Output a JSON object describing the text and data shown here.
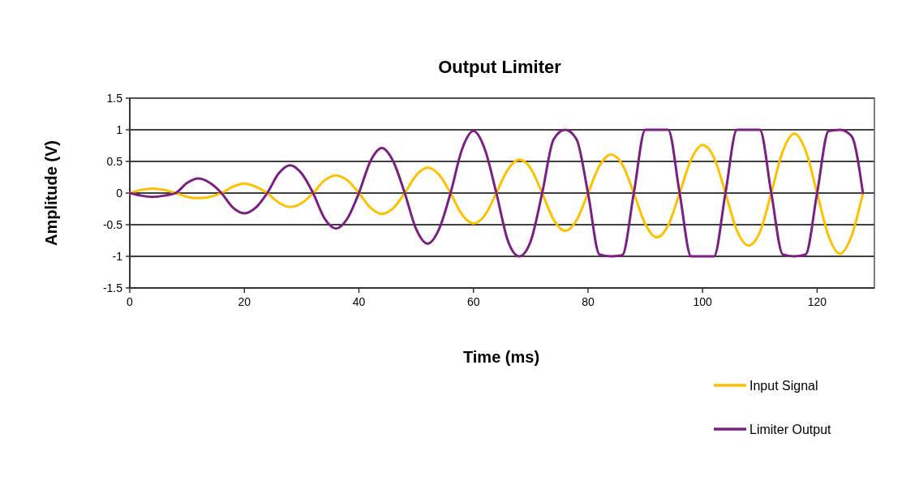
{
  "chart_data": {
    "type": "line",
    "title": "Output Limiter",
    "xlabel": "Time (ms)",
    "ylabel": "Amplitude (V)",
    "x": [
      0,
      2,
      4,
      6,
      8,
      10,
      12,
      14,
      16,
      18,
      20,
      22,
      24,
      26,
      28,
      30,
      32,
      34,
      36,
      38,
      40,
      42,
      44,
      46,
      48,
      50,
      52,
      54,
      56,
      58,
      60,
      62,
      64,
      66,
      68,
      70,
      72,
      74,
      76,
      78,
      80,
      82,
      84,
      86,
      88,
      90,
      92,
      94,
      96,
      98,
      100,
      102,
      104,
      106,
      108,
      110,
      112,
      114,
      116,
      118,
      120,
      122,
      124,
      126,
      128
    ],
    "series": [
      {
        "name": "Input Signal",
        "color": "#ffc000",
        "values": [
          0,
          0.05,
          0.07,
          0.05,
          0,
          -0.06,
          -0.08,
          -0.06,
          0,
          0.1,
          0.15,
          0.1,
          0,
          -0.15,
          -0.22,
          -0.16,
          0,
          0.2,
          0.28,
          0.2,
          0,
          -0.23,
          -0.33,
          -0.24,
          0,
          0.28,
          0.4,
          0.29,
          0,
          -0.34,
          -0.48,
          -0.35,
          0,
          0.37,
          0.53,
          0.39,
          0,
          -0.42,
          -0.6,
          -0.43,
          0,
          0.43,
          0.61,
          0.45,
          0,
          -0.49,
          -0.7,
          -0.51,
          0,
          0.53,
          0.76,
          0.56,
          0,
          -0.59,
          -0.83,
          -0.62,
          0,
          0.66,
          0.94,
          0.67,
          0,
          -0.68,
          -0.96,
          -0.68,
          0
        ]
      },
      {
        "name": "Limiter Output",
        "color": "#7b1f84",
        "values": [
          0,
          -0.04,
          -0.06,
          -0.04,
          0,
          0.16,
          0.23,
          0.16,
          0,
          -0.23,
          -0.32,
          -0.23,
          0,
          0.31,
          0.44,
          0.31,
          0,
          -0.4,
          -0.56,
          -0.4,
          0,
          0.5,
          0.71,
          0.5,
          0,
          -0.57,
          -0.8,
          -0.57,
          0,
          0.69,
          0.98,
          0.69,
          0,
          -0.75,
          -1,
          -0.76,
          0,
          0.85,
          1,
          0.85,
          0,
          -0.97,
          -1,
          -0.98,
          0,
          1,
          1,
          1,
          0,
          -1,
          -1,
          -1,
          0,
          1,
          1,
          1,
          0,
          -0.97,
          -1,
          -0.97,
          0,
          0.98,
          1,
          0.9,
          0
        ]
      }
    ],
    "xlim": [
      0,
      130
    ],
    "xticks": [
      0,
      20,
      40,
      60,
      80,
      100,
      120
    ],
    "ylim": [
      -1.5,
      1.5
    ],
    "yticks": [
      -1.5,
      -1,
      -0.5,
      0,
      0.5,
      1,
      1.5
    ],
    "grid": "y",
    "legend": "bottom right",
    "marker": "none",
    "line_style": "solid"
  }
}
